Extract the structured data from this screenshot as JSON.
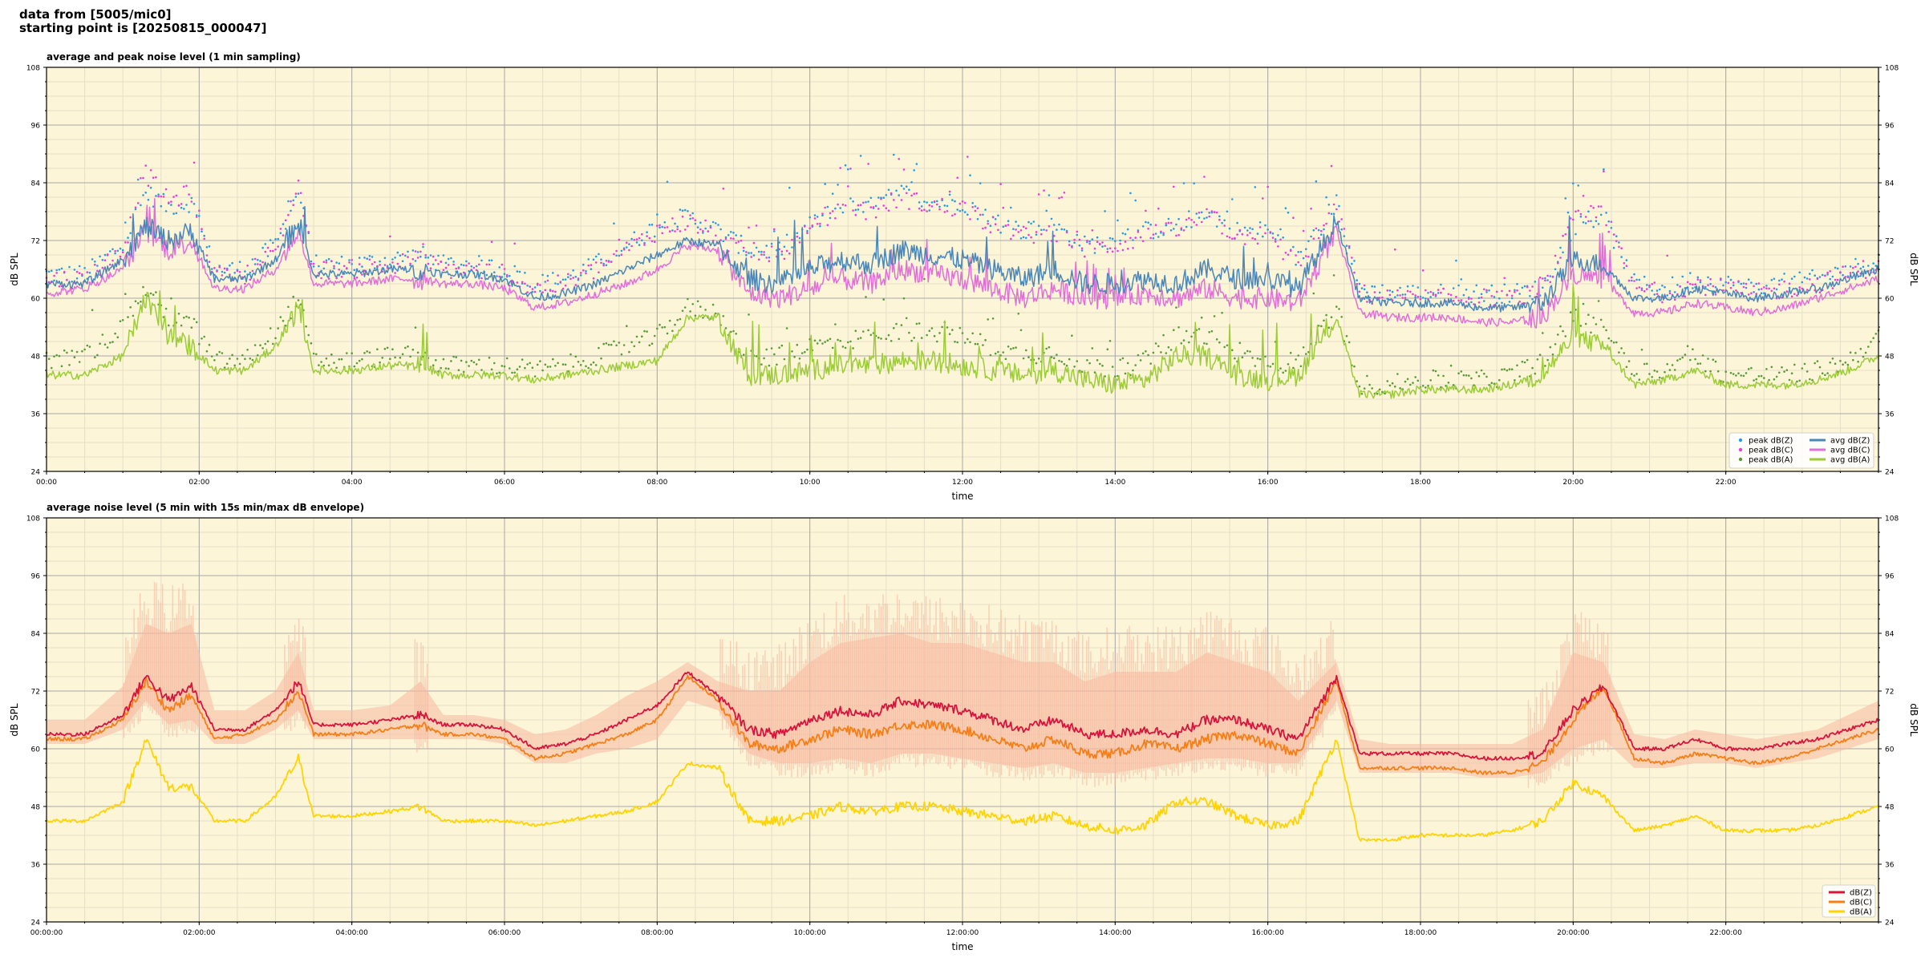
{
  "header": {
    "line1": "data from [5005/mic0]",
    "line2": "starting point is [20250815_000047]"
  },
  "colors": {
    "plot_bg": "#fdf5d8",
    "grid_major": "#a8a8a8",
    "grid_minor": "#e6dfc8",
    "peak_z": "#2b9be0",
    "peak_c": "#e83fd8",
    "peak_a": "#5a9a3a",
    "avg_z": "#4a86b8",
    "avg_c": "#e070d8",
    "avg_a": "#9ccc38",
    "db_z": "#d6143c",
    "db_c": "#f57f17",
    "db_a": "#ffd400",
    "envelope": "#f7b8a0"
  },
  "chart_data": [
    {
      "type": "line",
      "title": "average and peak noise level (1 min sampling)",
      "xlabel": "time",
      "ylabel": "dB SPL",
      "ylabel_right": "dB SPL",
      "ylim": [
        24,
        108
      ],
      "yticks": [
        24,
        36,
        48,
        60,
        72,
        84,
        96,
        108
      ],
      "xlim_hours": [
        0,
        24
      ],
      "xtick_labels": [
        "00:00",
        "02:00",
        "04:00",
        "06:00",
        "08:00",
        "10:00",
        "12:00",
        "14:00",
        "16:00",
        "18:00",
        "20:00",
        "22:00"
      ],
      "grid": true,
      "legend_position": "bottom-right",
      "legend": [
        {
          "label": "peak dB(Z)",
          "kind": "dot",
          "color_key": "peak_z"
        },
        {
          "label": "peak dB(C)",
          "kind": "dot",
          "color_key": "peak_c"
        },
        {
          "label": "peak dB(A)",
          "kind": "dot",
          "color_key": "peak_a"
        },
        {
          "label": "avg dB(Z)",
          "kind": "line",
          "color_key": "avg_z"
        },
        {
          "label": "avg dB(C)",
          "kind": "line",
          "color_key": "avg_c"
        },
        {
          "label": "avg dB(A)",
          "kind": "line",
          "color_key": "avg_a"
        }
      ],
      "x_hours": [
        0,
        0.5,
        1.0,
        1.3,
        1.6,
        1.9,
        2.2,
        2.6,
        3.0,
        3.3,
        3.5,
        4.0,
        4.5,
        4.9,
        5.2,
        5.6,
        6.0,
        6.4,
        6.8,
        7.2,
        7.6,
        8.0,
        8.4,
        8.8,
        9.2,
        9.6,
        10.0,
        10.4,
        10.8,
        11.2,
        11.6,
        12.0,
        12.4,
        12.8,
        13.2,
        13.6,
        14.0,
        14.4,
        14.8,
        15.2,
        15.6,
        16.0,
        16.4,
        16.9,
        17.2,
        17.6,
        18.0,
        18.4,
        18.8,
        19.2,
        19.6,
        20.0,
        20.4,
        20.8,
        21.2,
        21.6,
        22.0,
        22.4,
        22.8,
        23.2,
        23.6,
        24.0
      ],
      "series": [
        {
          "name": "avg dB(Z)",
          "color_key": "avg_z",
          "kind": "line",
          "values": [
            63,
            63,
            68,
            75,
            72,
            74,
            64,
            64,
            68,
            76,
            65,
            65,
            66,
            66,
            65,
            65,
            64,
            60,
            61,
            63,
            66,
            69,
            72,
            71,
            64,
            63,
            66,
            68,
            67,
            70,
            69,
            68,
            66,
            64,
            66,
            63,
            63,
            64,
            63,
            66,
            64,
            64,
            62,
            76,
            60,
            59,
            59,
            59,
            58,
            58,
            59,
            68,
            67,
            60,
            60,
            62,
            61,
            60,
            61,
            62,
            64,
            66
          ]
        },
        {
          "name": "avg dB(C)",
          "color_key": "avg_c",
          "kind": "line",
          "values": [
            61,
            62,
            66,
            74,
            70,
            72,
            62,
            62,
            66,
            74,
            63,
            63,
            64,
            64,
            63,
            63,
            62,
            58,
            59,
            61,
            63,
            66,
            71,
            70,
            61,
            60,
            62,
            64,
            63,
            66,
            65,
            64,
            62,
            60,
            62,
            60,
            60,
            61,
            60,
            62,
            60,
            60,
            59,
            74,
            57,
            56,
            56,
            56,
            55,
            55,
            56,
            65,
            64,
            57,
            57,
            59,
            58,
            57,
            58,
            60,
            62,
            64
          ]
        },
        {
          "name": "avg dB(A)",
          "color_key": "avg_a",
          "kind": "line",
          "values": [
            44,
            44,
            48,
            60,
            52,
            50,
            45,
            45,
            50,
            58,
            45,
            45,
            46,
            46,
            44,
            44,
            44,
            43,
            44,
            45,
            46,
            47,
            56,
            56,
            44,
            44,
            45,
            46,
            46,
            47,
            47,
            46,
            45,
            44,
            45,
            43,
            42,
            43,
            48,
            48,
            44,
            43,
            44,
            56,
            40,
            40,
            41,
            41,
            41,
            42,
            44,
            52,
            50,
            42,
            43,
            45,
            42,
            42,
            42,
            43,
            45,
            48
          ]
        },
        {
          "name": "peak dB(Z)",
          "color_key": "peak_z",
          "kind": "dot",
          "values": [
            65,
            65,
            71,
            82,
            79,
            80,
            66,
            66,
            71,
            82,
            67,
            67,
            68,
            69,
            67,
            67,
            66,
            63,
            64,
            67,
            71,
            75,
            77,
            74,
            70,
            70,
            75,
            79,
            79,
            82,
            80,
            80,
            76,
            74,
            75,
            71,
            72,
            74,
            75,
            78,
            74,
            74,
            68,
            80,
            62,
            61,
            61,
            61,
            61,
            61,
            62,
            75,
            77,
            63,
            62,
            64,
            63,
            62,
            63,
            64,
            66,
            68
          ]
        },
        {
          "name": "peak dB(C)",
          "color_key": "peak_c",
          "kind": "dot",
          "values": [
            64,
            64,
            70,
            86,
            80,
            82,
            65,
            65,
            70,
            84,
            66,
            66,
            67,
            68,
            66,
            66,
            65,
            62,
            63,
            66,
            70,
            74,
            76,
            73,
            69,
            69,
            74,
            78,
            78,
            81,
            79,
            79,
            75,
            73,
            74,
            70,
            71,
            73,
            74,
            77,
            73,
            73,
            67,
            79,
            61,
            60,
            60,
            60,
            60,
            60,
            61,
            76,
            78,
            62,
            61,
            63,
            62,
            61,
            62,
            63,
            65,
            67
          ]
        },
        {
          "name": "peak dB(A)",
          "color_key": "peak_a",
          "kind": "dot",
          "values": [
            47,
            48,
            54,
            62,
            56,
            55,
            47,
            47,
            53,
            60,
            47,
            47,
            48,
            48,
            46,
            46,
            46,
            45,
            46,
            48,
            50,
            52,
            58,
            57,
            47,
            48,
            50,
            51,
            52,
            53,
            53,
            52,
            50,
            48,
            49,
            46,
            45,
            47,
            52,
            52,
            48,
            46,
            47,
            58,
            42,
            42,
            43,
            43,
            43,
            44,
            47,
            56,
            54,
            45,
            45,
            48,
            44,
            44,
            44,
            45,
            47,
            52
          ]
        }
      ]
    },
    {
      "type": "line",
      "title": "average noise level (5 min with 15s min/max dB envelope)",
      "xlabel": "time",
      "ylabel": "dB SPL",
      "ylabel_right": "dB SPL",
      "ylim": [
        24,
        108
      ],
      "yticks": [
        24,
        36,
        48,
        60,
        72,
        84,
        96,
        108
      ],
      "xlim_hours": [
        0,
        24
      ],
      "xtick_labels": [
        "00:00:00",
        "02:00:00",
        "04:00:00",
        "06:00:00",
        "08:00:00",
        "10:00:00",
        "12:00:00",
        "14:00:00",
        "16:00:00",
        "18:00:00",
        "20:00:00",
        "22:00:00"
      ],
      "grid": true,
      "legend_position": "bottom-right",
      "legend": [
        {
          "label": "dB(Z)",
          "kind": "line",
          "color_key": "db_z"
        },
        {
          "label": "dB(C)",
          "kind": "line",
          "color_key": "db_c"
        },
        {
          "label": "dB(A)",
          "kind": "line",
          "color_key": "db_a"
        }
      ],
      "x_hours": [
        0,
        0.5,
        1.0,
        1.3,
        1.6,
        1.9,
        2.2,
        2.6,
        3.0,
        3.3,
        3.5,
        4.0,
        4.5,
        4.9,
        5.2,
        5.6,
        6.0,
        6.4,
        6.8,
        7.2,
        7.6,
        8.0,
        8.4,
        8.8,
        9.2,
        9.6,
        10.0,
        10.4,
        10.8,
        11.2,
        11.6,
        12.0,
        12.4,
        12.8,
        13.2,
        13.6,
        14.0,
        14.4,
        14.8,
        15.2,
        15.6,
        16.0,
        16.4,
        16.9,
        17.2,
        17.6,
        18.0,
        18.4,
        18.8,
        19.2,
        19.6,
        20.0,
        20.4,
        20.8,
        21.2,
        21.6,
        22.0,
        22.4,
        22.8,
        23.2,
        23.6,
        24.0
      ],
      "series": [
        {
          "name": "dB(Z)",
          "color_key": "db_z",
          "kind": "line",
          "values": [
            63,
            63,
            67,
            75,
            70,
            73,
            64,
            64,
            68,
            74,
            65,
            65,
            66,
            67,
            65,
            65,
            64,
            60,
            61,
            63,
            66,
            69,
            76,
            71,
            64,
            63,
            66,
            68,
            67,
            70,
            69,
            68,
            66,
            64,
            66,
            63,
            63,
            64,
            63,
            66,
            66,
            64,
            62,
            75,
            59,
            59,
            59,
            59,
            58,
            58,
            59,
            68,
            73,
            60,
            60,
            62,
            60,
            60,
            61,
            62,
            64,
            66
          ]
        },
        {
          "name": "dB(C)",
          "color_key": "db_c",
          "kind": "line",
          "values": [
            62,
            62,
            66,
            74,
            68,
            71,
            62,
            63,
            66,
            72,
            63,
            63,
            64,
            65,
            63,
            63,
            62,
            58,
            59,
            61,
            63,
            66,
            75,
            70,
            61,
            60,
            62,
            64,
            63,
            65,
            65,
            64,
            62,
            60,
            62,
            59,
            59,
            61,
            60,
            62,
            63,
            61,
            59,
            74,
            56,
            56,
            56,
            56,
            55,
            55,
            57,
            66,
            73,
            58,
            57,
            59,
            58,
            57,
            58,
            60,
            62,
            64
          ]
        },
        {
          "name": "dB(A)",
          "color_key": "db_a",
          "kind": "line",
          "values": [
            45,
            45,
            49,
            62,
            52,
            52,
            45,
            45,
            50,
            58,
            46,
            46,
            47,
            48,
            45,
            45,
            45,
            44,
            45,
            46,
            47,
            49,
            57,
            56,
            45,
            45,
            46,
            48,
            47,
            48,
            48,
            47,
            46,
            45,
            46,
            44,
            43,
            44,
            49,
            49,
            46,
            44,
            45,
            62,
            41,
            41,
            42,
            42,
            42,
            43,
            45,
            53,
            50,
            43,
            44,
            46,
            43,
            43,
            43,
            44,
            46,
            48
          ]
        },
        {
          "name": "envelope max",
          "color_key": "envelope",
          "kind": "band_upper",
          "values": [
            66,
            66,
            73,
            86,
            84,
            86,
            68,
            68,
            72,
            80,
            68,
            68,
            69,
            74,
            67,
            67,
            66,
            63,
            64,
            67,
            71,
            74,
            78,
            74,
            72,
            72,
            78,
            82,
            83,
            84,
            82,
            82,
            80,
            78,
            78,
            74,
            76,
            76,
            76,
            80,
            78,
            76,
            70,
            78,
            62,
            61,
            61,
            61,
            61,
            61,
            64,
            80,
            78,
            63,
            62,
            64,
            63,
            62,
            63,
            64,
            67,
            70
          ]
        },
        {
          "name": "envelope min",
          "color_key": "envelope",
          "kind": "band_lower",
          "values": [
            61,
            61,
            64,
            70,
            65,
            66,
            61,
            61,
            64,
            68,
            62,
            62,
            62,
            62,
            62,
            62,
            61,
            57,
            57,
            59,
            60,
            62,
            70,
            68,
            59,
            57,
            57,
            58,
            57,
            59,
            59,
            58,
            57,
            56,
            57,
            55,
            55,
            56,
            57,
            58,
            58,
            57,
            57,
            70,
            55,
            55,
            55,
            55,
            54,
            54,
            55,
            60,
            62,
            56,
            56,
            57,
            57,
            56,
            57,
            58,
            60,
            62
          ]
        }
      ]
    }
  ]
}
